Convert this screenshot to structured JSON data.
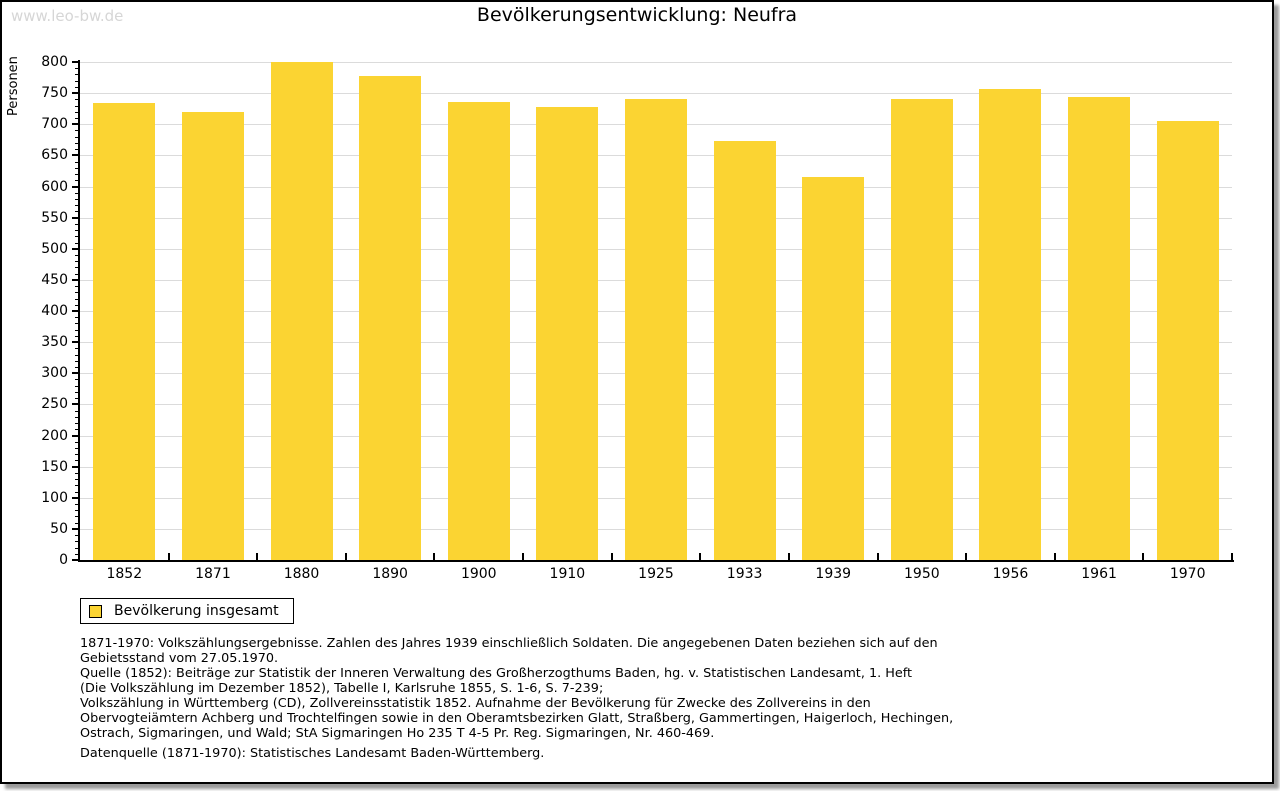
{
  "window": {
    "watermark": "www.leo-bw.de"
  },
  "chart_data": {
    "type": "bar",
    "title": "Bevölkerungsentwicklung: Neufra",
    "xlabel": "",
    "ylabel": "Personen",
    "categories": [
      "1852",
      "1871",
      "1880",
      "1890",
      "1900",
      "1910",
      "1925",
      "1933",
      "1939",
      "1950",
      "1956",
      "1961",
      "1970"
    ],
    "series": [
      {
        "name": "Bevölkerung insgesamt",
        "values": [
          734,
          720,
          800,
          777,
          736,
          727,
          741,
          673,
          616,
          740,
          756,
          744,
          706
        ]
      }
    ],
    "ylim": [
      0,
      800
    ],
    "ytick_step": 50,
    "ytick_minor_step": 10,
    "grid": true,
    "legend_position": "bottom-left"
  },
  "legend": {
    "items": [
      {
        "label": "Bevölkerung insgesamt",
        "swatch_color": "#FBD432"
      }
    ]
  },
  "footer": {
    "notes": [
      "1871-1970: Volkszählungsergebnisse. Zahlen des Jahres 1939 einschließlich Soldaten. Die angegebenen Daten beziehen sich auf den",
      "Gebietsstand vom 27.05.1970.",
      "Quelle (1852): Beiträge zur Statistik der Inneren Verwaltung des Großherzogthums Baden, hg. v. Statistischen Landesamt, 1. Heft",
      "(Die Volkszählung im Dezember 1852), Tabelle I, Karlsruhe 1855, S. 1-6, S. 7-239;",
      "Volkszählung in Württemberg (CD), Zollvereinsstatistik 1852. Aufnahme der Bevölkerung für Zwecke des Zollvereins in den",
      "Obervogteiämtern Achberg und Trochtelfingen sowie in den Oberamtsbezirken Glatt, Straßberg, Gammertingen, Haigerloch, Hechingen,",
      "Ostrach, Sigmaringen, und Wald; StA Sigmaringen Ho 235 T 4-5 Pr. Reg. Sigmaringen, Nr. 460-469."
    ],
    "datenquelle": "Datenquelle (1871-1970): Statistisches Landesamt Baden-Württemberg."
  },
  "colors": {
    "bar": "#FBD432",
    "gridline": "#DBDBDB",
    "axis": "#000000",
    "watermark": "#D6D6D6",
    "shadow": "#9A9A9A",
    "text": "#000000"
  }
}
